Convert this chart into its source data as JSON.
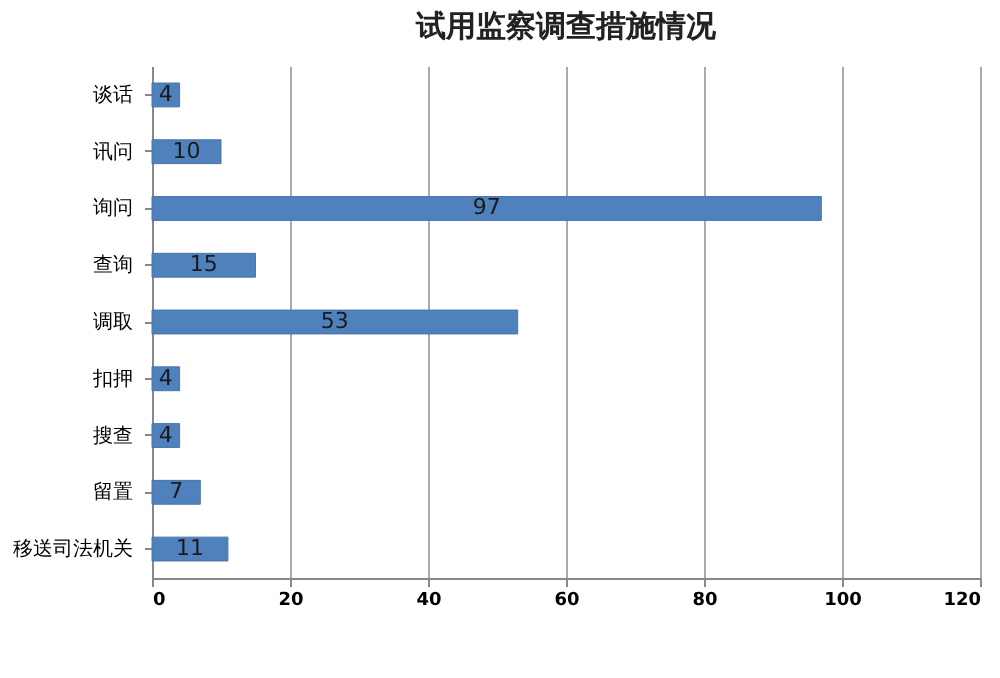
{
  "chart_data": {
    "type": "bar",
    "orientation": "horizontal",
    "title": "试用监察调查措施情况",
    "categories": [
      "谈话",
      "讯问",
      "询问",
      "查询",
      "调取",
      "扣押",
      "搜查",
      "留置",
      "移送司法机关"
    ],
    "values": [
      4,
      10,
      97,
      15,
      53,
      4,
      4,
      7,
      11
    ],
    "color": "#4f81bd",
    "xlim": [
      0,
      120
    ],
    "xticks": [
      0,
      20,
      40,
      60,
      80,
      100,
      120
    ],
    "grid": "x",
    "data_labels": true
  }
}
